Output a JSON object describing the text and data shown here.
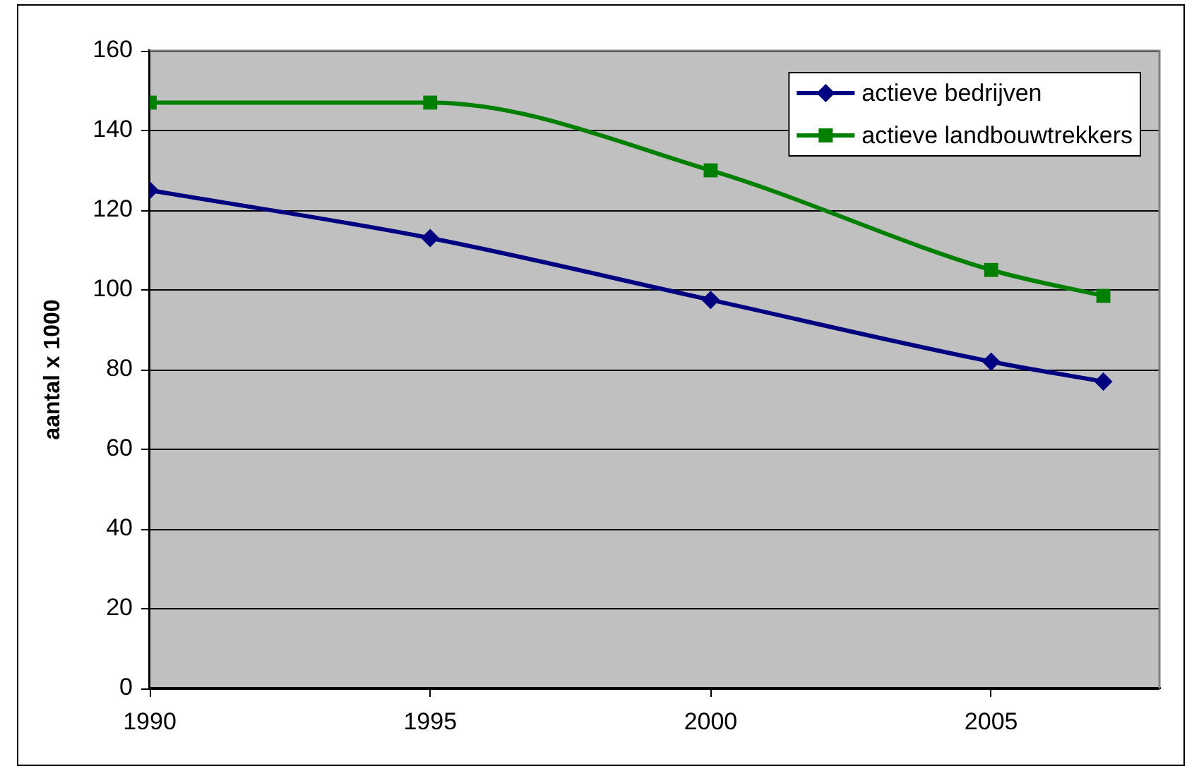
{
  "chart_data": {
    "type": "line",
    "ylabel": "aantal x 1000",
    "x": [
      1990,
      1995,
      2000,
      2005,
      2007
    ],
    "series": [
      {
        "name": "actieve bedrijven",
        "color": "#000080",
        "marker": "diamond",
        "values": [
          125,
          113,
          97.5,
          82,
          77
        ]
      },
      {
        "name": "actieve landbouwtrekkers",
        "color": "#008000",
        "marker": "square",
        "values": [
          147,
          147,
          130,
          105,
          98.5
        ]
      }
    ],
    "xlim": [
      1990,
      2008
    ],
    "ylim": [
      0,
      160
    ],
    "xticks": [
      1990,
      1995,
      2000,
      2005
    ],
    "yticks": [
      0,
      20,
      40,
      60,
      80,
      100,
      120,
      140,
      160
    ],
    "grid": "y",
    "legend": "top right"
  }
}
